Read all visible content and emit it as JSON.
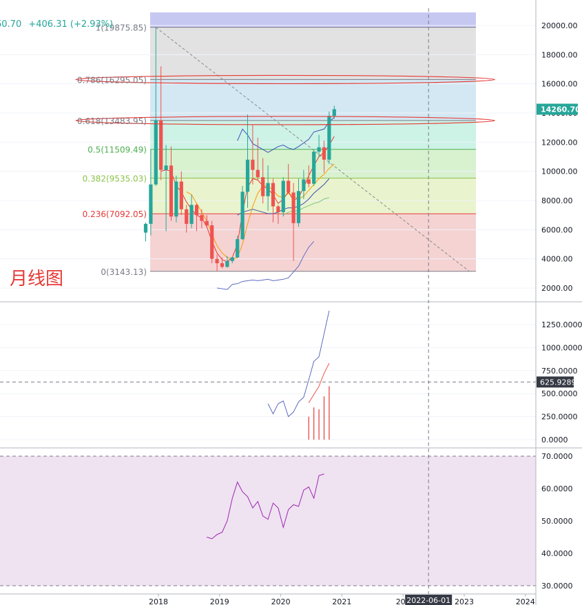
{
  "header": {
    "last_fragment": "60.70",
    "change": "+406.31 (+2.93%)"
  },
  "watermark": "月线图",
  "chart_data": [
    {
      "type": "candlestick",
      "panel": "price",
      "yticks": [
        "20000.00",
        "18000.00",
        "16000.00",
        "14000.00",
        "12000.00",
        "10000.00",
        "8000.00",
        "6000.00",
        "4000.00",
        "2000.00"
      ],
      "ylim": [
        1500,
        20800
      ],
      "last_price_label": "14260.70",
      "last_price": 14260.7,
      "fib_levels": [
        {
          "label": "1(19875.85)",
          "value": 19875.85,
          "color": "#787b86",
          "band": "#c7c8f2"
        },
        {
          "label": "0.786(16295.05)",
          "value": 16295.05,
          "color": "#787b86",
          "band": "#e2e2e2"
        },
        {
          "label": "0.618(13483.95)",
          "value": 13483.95,
          "color": "#787b86",
          "band": "#d3e8f3"
        },
        {
          "label": "0.5(11509.49)",
          "value": 11509.49,
          "color": "#4caf50",
          "band": "#cdf2e6"
        },
        {
          "label": "0.382(9535.03)",
          "value": 9535.03,
          "color": "#8bc34a",
          "band": "#d8f1cf"
        },
        {
          "label": "0.236(7092.05)",
          "value": 7092.05,
          "color": "#e53935",
          "band": "#e9f3cd"
        },
        {
          "label": "0(3143.13)",
          "value": 3143.13,
          "color": "#787b86",
          "band": "#f5d3d3"
        }
      ],
      "candles": [
        {
          "m": "2017-10",
          "o": 5800,
          "h": 6500,
          "l": 5200,
          "c": 6400
        },
        {
          "m": "2017-11",
          "o": 6400,
          "h": 11500,
          "l": 5600,
          "c": 9100
        },
        {
          "m": "2017-12",
          "o": 9100,
          "h": 19875.85,
          "l": 9000,
          "c": 13500
        },
        {
          "m": "2018-01",
          "o": 13500,
          "h": 17200,
          "l": 9400,
          "c": 10100
        },
        {
          "m": "2018-02",
          "o": 10100,
          "h": 11800,
          "l": 5900,
          "c": 10400
        },
        {
          "m": "2018-03",
          "o": 10400,
          "h": 11700,
          "l": 6600,
          "c": 6900
        },
        {
          "m": "2018-04",
          "o": 6900,
          "h": 9700,
          "l": 6500,
          "c": 9300
        },
        {
          "m": "2018-05",
          "o": 9300,
          "h": 10000,
          "l": 7000,
          "c": 7400
        },
        {
          "m": "2018-06",
          "o": 7400,
          "h": 7700,
          "l": 5800,
          "c": 6400
        },
        {
          "m": "2018-07",
          "o": 6400,
          "h": 8400,
          "l": 6100,
          "c": 7700
        },
        {
          "m": "2018-08",
          "o": 7700,
          "h": 7800,
          "l": 5900,
          "c": 7000
        },
        {
          "m": "2018-09",
          "o": 7000,
          "h": 7400,
          "l": 6100,
          "c": 6600
        },
        {
          "m": "2018-10",
          "o": 6600,
          "h": 7000,
          "l": 6200,
          "c": 6300
        },
        {
          "m": "2018-11",
          "o": 6300,
          "h": 6600,
          "l": 3700,
          "c": 4000
        },
        {
          "m": "2018-12",
          "o": 4000,
          "h": 4300,
          "l": 3143.13,
          "c": 3700
        },
        {
          "m": "2019-01",
          "o": 3700,
          "h": 4100,
          "l": 3350,
          "c": 3450
        },
        {
          "m": "2019-02",
          "o": 3450,
          "h": 4200,
          "l": 3400,
          "c": 3850
        },
        {
          "m": "2019-03",
          "o": 3850,
          "h": 4150,
          "l": 3700,
          "c": 4100
        },
        {
          "m": "2019-04",
          "o": 4100,
          "h": 5600,
          "l": 4050,
          "c": 5350
        },
        {
          "m": "2019-05",
          "o": 5350,
          "h": 9000,
          "l": 5300,
          "c": 8600
        },
        {
          "m": "2019-06",
          "o": 8600,
          "h": 13900,
          "l": 7500,
          "c": 10800
        },
        {
          "m": "2019-07",
          "o": 10800,
          "h": 13200,
          "l": 9100,
          "c": 10100
        },
        {
          "m": "2019-08",
          "o": 10100,
          "h": 12300,
          "l": 9400,
          "c": 9600
        },
        {
          "m": "2019-09",
          "o": 9600,
          "h": 10900,
          "l": 7800,
          "c": 8300
        },
        {
          "m": "2019-10",
          "o": 8300,
          "h": 10400,
          "l": 7300,
          "c": 9200
        },
        {
          "m": "2019-11",
          "o": 9200,
          "h": 9500,
          "l": 6500,
          "c": 7600
        },
        {
          "m": "2019-12",
          "o": 7600,
          "h": 7700,
          "l": 6400,
          "c": 7200
        },
        {
          "m": "2020-01",
          "o": 7200,
          "h": 9600,
          "l": 6900,
          "c": 9350
        },
        {
          "m": "2020-02",
          "o": 9350,
          "h": 10500,
          "l": 8500,
          "c": 8550
        },
        {
          "m": "2020-03",
          "o": 8550,
          "h": 9200,
          "l": 3850,
          "c": 6450
        },
        {
          "m": "2020-04",
          "o": 6450,
          "h": 9500,
          "l": 6200,
          "c": 8650
        },
        {
          "m": "2020-05",
          "o": 8650,
          "h": 10100,
          "l": 8100,
          "c": 9450
        },
        {
          "m": "2020-06",
          "o": 9450,
          "h": 10400,
          "l": 8900,
          "c": 9150
        },
        {
          "m": "2020-07",
          "o": 9150,
          "h": 11500,
          "l": 9000,
          "c": 11350
        },
        {
          "m": "2020-08",
          "o": 11350,
          "h": 12500,
          "l": 11000,
          "c": 11650
        },
        {
          "m": "2020-09",
          "o": 11650,
          "h": 12100,
          "l": 9900,
          "c": 10800
        },
        {
          "m": "2020-10",
          "o": 10800,
          "h": 14100,
          "l": 10500,
          "c": 13800
        },
        {
          "m": "2020-11",
          "o": 13800,
          "h": 14500,
          "l": 13600,
          "c": 14260.7
        }
      ],
      "ma_blue_upper": [
        [
          18,
          12100
        ],
        [
          19,
          12900
        ],
        [
          20,
          12500
        ],
        [
          21,
          11900
        ],
        [
          22,
          11700
        ],
        [
          23,
          11500
        ],
        [
          24,
          11300
        ],
        [
          25,
          11500
        ],
        [
          26,
          11700
        ],
        [
          27,
          11800
        ],
        [
          28,
          11600
        ],
        [
          29,
          11500
        ],
        [
          30,
          11700
        ],
        [
          31,
          11950
        ],
        [
          32,
          12200
        ],
        [
          33,
          12700
        ],
        [
          34,
          12800
        ],
        [
          35,
          12900
        ],
        [
          36,
          13400
        ],
        [
          37,
          13700
        ]
      ],
      "ma_blue_mid": [
        [
          18,
          7000
        ],
        [
          19,
          7200
        ],
        [
          20,
          7300
        ],
        [
          21,
          7400
        ],
        [
          22,
          7300
        ],
        [
          23,
          7200
        ],
        [
          24,
          7100
        ],
        [
          25,
          7100
        ],
        [
          26,
          7200
        ],
        [
          27,
          7400
        ],
        [
          28,
          7500
        ],
        [
          29,
          7500
        ],
        [
          30,
          7600
        ],
        [
          31,
          7800
        ],
        [
          32,
          8100
        ],
        [
          33,
          8500
        ],
        [
          34,
          8800
        ],
        [
          35,
          9100
        ],
        [
          36,
          9500
        ]
      ],
      "ma_green": [
        [
          27,
          7000
        ],
        [
          28,
          7200
        ],
        [
          29,
          7300
        ],
        [
          30,
          7300
        ],
        [
          31,
          7500
        ],
        [
          32,
          7650
        ],
        [
          33,
          7800
        ],
        [
          34,
          7900
        ],
        [
          35,
          8100
        ],
        [
          36,
          8200
        ]
      ],
      "ma_orange": [
        [
          8,
          8600
        ],
        [
          9,
          8400
        ],
        [
          10,
          7800
        ],
        [
          11,
          7200
        ],
        [
          12,
          6600
        ],
        [
          13,
          5700
        ],
        [
          14,
          4900
        ],
        [
          15,
          4400
        ],
        [
          16,
          4100
        ],
        [
          17,
          3950
        ],
        [
          18,
          4100
        ],
        [
          19,
          5000
        ],
        [
          20,
          6400
        ],
        [
          21,
          7600
        ],
        [
          22,
          8500
        ],
        [
          23,
          9000
        ],
        [
          24,
          9000
        ],
        [
          25,
          8700
        ],
        [
          26,
          8300
        ],
        [
          27,
          8200
        ],
        [
          28,
          8500
        ],
        [
          29,
          8300
        ],
        [
          30,
          8100
        ],
        [
          31,
          8300
        ],
        [
          32,
          8700
        ],
        [
          33,
          9100
        ],
        [
          34,
          9500
        ],
        [
          35,
          9800
        ],
        [
          36,
          10200
        ],
        [
          37,
          10500
        ]
      ],
      "ma_red": [
        [
          3,
          10000
        ],
        [
          4,
          10100
        ],
        [
          5,
          10000
        ],
        [
          6,
          9000
        ],
        [
          7,
          8600
        ],
        [
          8,
          7900
        ],
        [
          9,
          7400
        ],
        [
          10,
          7000
        ],
        [
          11,
          6800
        ],
        [
          12,
          6200
        ],
        [
          13,
          5200
        ],
        [
          14,
          4400
        ],
        [
          15,
          3950
        ],
        [
          16,
          3800
        ],
        [
          17,
          4100
        ],
        [
          18,
          5000
        ],
        [
          19,
          7200
        ],
        [
          20,
          8900
        ],
        [
          21,
          9500
        ],
        [
          22,
          9400
        ],
        [
          23,
          9000
        ],
        [
          24,
          8800
        ],
        [
          25,
          8400
        ],
        [
          26,
          7800
        ],
        [
          27,
          8100
        ],
        [
          28,
          8600
        ],
        [
          29,
          8000
        ],
        [
          30,
          8200
        ],
        [
          31,
          8900
        ],
        [
          32,
          9700
        ],
        [
          33,
          10400
        ],
        [
          34,
          11000
        ],
        [
          35,
          11300
        ],
        [
          36,
          11800
        ],
        [
          37,
          12400
        ]
      ],
      "ma_blue_low": [
        [
          14,
          2000
        ],
        [
          15,
          1950
        ],
        [
          16,
          1900
        ],
        [
          17,
          2250
        ],
        [
          18,
          2300
        ],
        [
          19,
          2450
        ],
        [
          20,
          2500
        ],
        [
          21,
          2550
        ],
        [
          22,
          2500
        ],
        [
          23,
          2550
        ],
        [
          24,
          2600
        ],
        [
          25,
          2500
        ],
        [
          26,
          2550
        ],
        [
          27,
          2600
        ],
        [
          28,
          2700
        ],
        [
          29,
          3100
        ],
        [
          30,
          3500
        ],
        [
          31,
          4200
        ],
        [
          32,
          4800
        ],
        [
          33,
          5200
        ]
      ],
      "x_axis": {
        "ticks": [
          {
            "label": "2018",
            "m": 2.5
          },
          {
            "label": "2019",
            "m": 14.5
          },
          {
            "label": "2020",
            "m": 26.5
          },
          {
            "label": "2021",
            "m": 38.5
          },
          {
            "label": "202",
            "m": 50.5
          },
          {
            "label": "2023",
            "m": 62.5
          },
          {
            "label": "2024",
            "m": 74.5
          }
        ],
        "crosshair_label": "2022-06-01",
        "crosshair_m": 55.5
      },
      "trend_line": {
        "from": [
          2,
          19875.85
        ],
        "to": [
          63.5,
          3143.13
        ]
      },
      "fib_x_range": [
        0,
        63
      ],
      "ellipses": [
        {
          "level": 16295.05,
          "to_m": 68.5
        },
        {
          "level": 13483.95,
          "to_m": 68.5
        }
      ]
    },
    {
      "type": "line",
      "panel": "indicator",
      "yticks": [
        "1250.0000",
        "1000.0000",
        "750.0000",
        "500.0000",
        "250.0000",
        "0.0000"
      ],
      "ylim": [
        -60,
        1430
      ],
      "marker_label": "625.9289",
      "marker_value": 625.9289,
      "blue_line": [
        [
          24,
          390
        ],
        [
          25,
          280
        ],
        [
          26,
          390
        ],
        [
          27,
          420
        ],
        [
          28,
          250
        ],
        [
          29,
          300
        ],
        [
          30,
          410
        ],
        [
          31,
          460
        ],
        [
          32,
          650
        ],
        [
          33,
          850
        ],
        [
          34,
          900
        ],
        [
          35,
          1150
        ],
        [
          36,
          1400
        ]
      ],
      "red_line": [
        [
          32,
          400
        ],
        [
          33,
          490
        ],
        [
          34,
          580
        ],
        [
          35,
          720
        ],
        [
          36,
          830
        ]
      ],
      "histogram": [
        [
          32,
          250
        ],
        [
          33,
          350
        ],
        [
          34,
          330
        ],
        [
          35,
          470
        ],
        [
          36,
          580
        ]
      ]
    },
    {
      "type": "line",
      "panel": "rsi",
      "yticks": [
        "70.0000",
        "60.0000",
        "50.0000",
        "40.0000",
        "30.0000"
      ],
      "ylim": [
        28,
        72
      ],
      "upper_band": 70,
      "lower_band": 30,
      "line": [
        [
          12,
          45
        ],
        [
          13,
          44.5
        ],
        [
          14,
          45.8
        ],
        [
          15,
          46.5
        ],
        [
          16,
          50
        ],
        [
          17,
          57
        ],
        [
          18,
          62
        ],
        [
          19,
          59
        ],
        [
          20,
          57.5
        ],
        [
          21,
          54
        ],
        [
          22,
          56
        ],
        [
          23,
          51.5
        ],
        [
          24,
          50.5
        ],
        [
          25,
          55.5
        ],
        [
          26,
          54
        ],
        [
          27,
          48
        ],
        [
          28,
          53.5
        ],
        [
          29,
          55
        ],
        [
          30,
          54.5
        ],
        [
          31,
          59.5
        ],
        [
          32,
          60.5
        ],
        [
          33,
          57
        ],
        [
          34,
          64
        ],
        [
          35,
          64.5
        ]
      ]
    }
  ]
}
